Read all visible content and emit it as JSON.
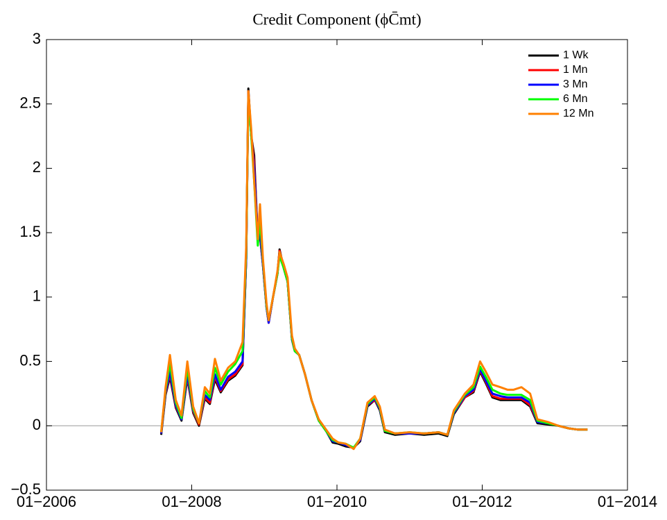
{
  "chart_data": {
    "type": "line",
    "title": "Credit Component (ϕC̄mt)",
    "x": [
      2007.58,
      2007.64,
      2007.7,
      2007.78,
      2007.86,
      2007.94,
      2008.02,
      2008.1,
      2008.18,
      2008.25,
      2008.32,
      2008.4,
      2008.5,
      2008.6,
      2008.7,
      2008.75,
      2008.78,
      2008.82,
      2008.86,
      2008.91,
      2008.94,
      2008.98,
      2009.03,
      2009.06,
      2009.12,
      2009.18,
      2009.21,
      2009.27,
      2009.32,
      2009.38,
      2009.42,
      2009.48,
      2009.56,
      2009.65,
      2009.75,
      2009.85,
      2009.94,
      2010.02,
      2010.12,
      2010.23,
      2010.32,
      2010.42,
      2010.52,
      2010.59,
      2010.66,
      2010.8,
      2011.0,
      2011.2,
      2011.4,
      2011.52,
      2011.61,
      2011.76,
      2011.88,
      2011.97,
      2012.05,
      2012.14,
      2012.25,
      2012.35,
      2012.43,
      2012.54,
      2012.66,
      2012.76,
      2012.9,
      2013.05,
      2013.19,
      2013.32,
      2013.45
    ],
    "series": [
      {
        "name": "1 Wk",
        "color": "#000000",
        "values": [
          -0.07,
          0.24,
          0.38,
          0.14,
          0.04,
          0.37,
          0.1,
          0.0,
          0.21,
          0.17,
          0.36,
          0.26,
          0.35,
          0.39,
          0.47,
          1.3,
          2.62,
          2.25,
          2.1,
          1.45,
          1.47,
          1.25,
          0.92,
          0.8,
          1.0,
          1.18,
          1.37,
          1.22,
          1.12,
          0.67,
          0.58,
          0.55,
          0.4,
          0.2,
          0.04,
          -0.04,
          -0.13,
          -0.14,
          -0.16,
          -0.17,
          -0.12,
          0.15,
          0.2,
          0.12,
          -0.05,
          -0.07,
          -0.06,
          -0.07,
          -0.06,
          -0.08,
          0.09,
          0.22,
          0.26,
          0.42,
          0.33,
          0.22,
          0.2,
          0.2,
          0.2,
          0.2,
          0.15,
          0.02,
          0.01,
          0.0,
          -0.02,
          -0.03,
          -0.03
        ]
      },
      {
        "name": "1 Mn",
        "color": "#ff0000",
        "values": [
          -0.06,
          0.25,
          0.4,
          0.15,
          0.05,
          0.38,
          0.11,
          0.01,
          0.22,
          0.18,
          0.38,
          0.27,
          0.36,
          0.4,
          0.48,
          1.3,
          2.6,
          2.25,
          2.05,
          1.45,
          1.48,
          1.25,
          0.92,
          0.8,
          1.0,
          1.18,
          1.36,
          1.22,
          1.12,
          0.67,
          0.58,
          0.55,
          0.4,
          0.2,
          0.04,
          -0.04,
          -0.12,
          -0.13,
          -0.15,
          -0.17,
          -0.11,
          0.16,
          0.2,
          0.13,
          -0.04,
          -0.06,
          -0.06,
          -0.06,
          -0.05,
          -0.07,
          0.1,
          0.22,
          0.27,
          0.43,
          0.34,
          0.23,
          0.21,
          0.21,
          0.21,
          0.21,
          0.16,
          0.03,
          0.02,
          0.0,
          -0.02,
          -0.03,
          -0.03
        ]
      },
      {
        "name": "3 Mn",
        "color": "#0000ff",
        "values": [
          -0.06,
          0.26,
          0.42,
          0.16,
          0.05,
          0.4,
          0.12,
          0.02,
          0.24,
          0.2,
          0.4,
          0.28,
          0.38,
          0.42,
          0.5,
          1.3,
          2.58,
          2.25,
          2.0,
          1.45,
          1.5,
          1.25,
          0.92,
          0.8,
          1.0,
          1.18,
          1.35,
          1.22,
          1.12,
          0.67,
          0.58,
          0.55,
          0.4,
          0.2,
          0.04,
          -0.04,
          -0.12,
          -0.13,
          -0.15,
          -0.17,
          -0.11,
          0.16,
          0.21,
          0.13,
          -0.04,
          -0.06,
          -0.06,
          -0.06,
          -0.05,
          -0.07,
          0.1,
          0.23,
          0.28,
          0.44,
          0.35,
          0.25,
          0.23,
          0.22,
          0.22,
          0.22,
          0.18,
          0.03,
          0.02,
          0.0,
          -0.02,
          -0.03,
          -0.03
        ]
      },
      {
        "name": "6 Mn",
        "color": "#00ff00",
        "values": [
          -0.05,
          0.28,
          0.48,
          0.18,
          0.06,
          0.45,
          0.13,
          0.02,
          0.27,
          0.22,
          0.45,
          0.32,
          0.42,
          0.48,
          0.58,
          1.35,
          2.55,
          2.25,
          1.9,
          1.4,
          1.6,
          1.28,
          0.93,
          0.82,
          1.0,
          1.18,
          1.32,
          1.22,
          1.12,
          0.68,
          0.58,
          0.55,
          0.4,
          0.2,
          0.04,
          -0.04,
          -0.11,
          -0.13,
          -0.14,
          -0.17,
          -0.1,
          0.17,
          0.22,
          0.14,
          -0.04,
          -0.06,
          -0.05,
          -0.06,
          -0.05,
          -0.07,
          0.11,
          0.24,
          0.3,
          0.46,
          0.38,
          0.28,
          0.25,
          0.24,
          0.24,
          0.24,
          0.2,
          0.04,
          0.02,
          0.0,
          -0.02,
          -0.03,
          -0.03
        ]
      },
      {
        "name": "12 Mn",
        "color": "#ff8000",
        "values": [
          -0.05,
          0.3,
          0.55,
          0.2,
          0.08,
          0.5,
          0.15,
          0.02,
          0.3,
          0.25,
          0.52,
          0.35,
          0.45,
          0.5,
          0.65,
          1.4,
          2.6,
          2.3,
          1.9,
          1.45,
          1.72,
          1.3,
          0.95,
          0.82,
          1.0,
          1.2,
          1.35,
          1.25,
          1.15,
          0.7,
          0.6,
          0.55,
          0.4,
          0.2,
          0.05,
          -0.03,
          -0.1,
          -0.13,
          -0.14,
          -0.18,
          -0.1,
          0.18,
          0.23,
          0.15,
          -0.03,
          -0.06,
          -0.05,
          -0.06,
          -0.05,
          -0.07,
          0.12,
          0.25,
          0.32,
          0.5,
          0.42,
          0.32,
          0.3,
          0.28,
          0.28,
          0.3,
          0.25,
          0.05,
          0.03,
          0.0,
          -0.02,
          -0.03,
          -0.03
        ]
      }
    ],
    "xlim": [
      2006,
      2014
    ],
    "xticks": [
      {
        "value": 2006,
        "label": "01−2006"
      },
      {
        "value": 2008,
        "label": "01−2008"
      },
      {
        "value": 2010,
        "label": "01−2010"
      },
      {
        "value": 2012,
        "label": "01−2012"
      },
      {
        "value": 2014,
        "label": "01−2014"
      }
    ],
    "ylim": [
      -0.5,
      3
    ],
    "yticks": [
      {
        "value": -0.5,
        "label": "−0.5"
      },
      0,
      0.5,
      1,
      1.5,
      2,
      2.5,
      3
    ],
    "zero_line": true,
    "legend": "top-right"
  }
}
